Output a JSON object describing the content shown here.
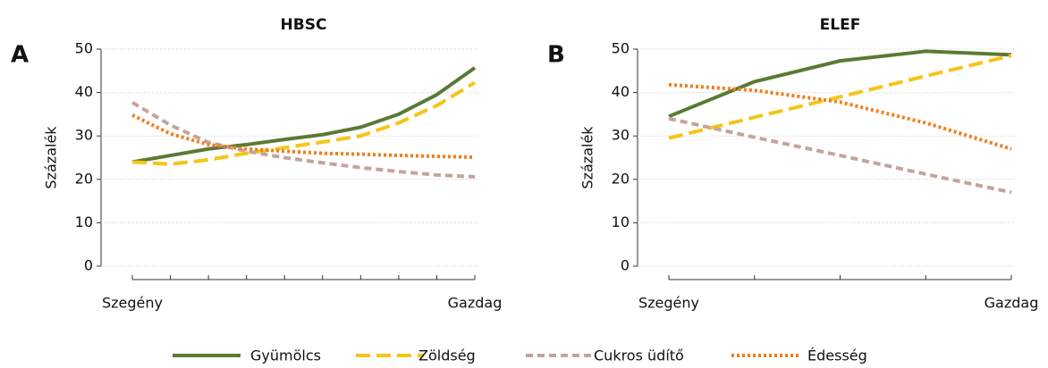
{
  "chart_data": [
    {
      "type": "line",
      "panel_label": "A",
      "title": "HBSC",
      "y_label": "Százalék",
      "categories": [
        "Szegény",
        null,
        null,
        null,
        null,
        null,
        null,
        null,
        null,
        "Gazdag"
      ],
      "ylim": [
        0,
        50
      ],
      "yticks": [
        0,
        10,
        20,
        30,
        40,
        50
      ],
      "grid": true,
      "series": [
        {
          "name": "Gyümölcs",
          "color": "#5a7a35",
          "dash": "solid",
          "values": [
            24,
            25.5,
            27,
            28,
            29.2,
            30.3,
            32,
            35,
            39.5,
            45.7
          ]
        },
        {
          "name": "Zöldség",
          "color": "#f5c518",
          "dash": "long",
          "values": [
            24,
            23.5,
            24.5,
            26,
            27.3,
            28.6,
            30,
            33,
            37,
            42.3
          ]
        },
        {
          "name": "Cukros üdítő",
          "color": "#c4a49a",
          "dash": "short",
          "values": [
            37.7,
            32.5,
            28.5,
            26.5,
            25,
            23.8,
            22.7,
            21.8,
            21,
            20.6
          ]
        },
        {
          "name": "Édesség",
          "color": "#f07f1e",
          "dash": "dotted",
          "values": [
            34.8,
            30.5,
            28,
            27,
            26.5,
            26,
            25.8,
            25.5,
            25.3,
            25.1
          ]
        }
      ]
    },
    {
      "type": "line",
      "panel_label": "B",
      "title": "ELEF",
      "y_label": "Százalék",
      "categories": [
        "Szegény",
        null,
        null,
        null,
        "Gazdag"
      ],
      "ylim": [
        0,
        50
      ],
      "yticks": [
        0,
        10,
        20,
        30,
        40,
        50
      ],
      "grid": true,
      "series": [
        {
          "color": "#5a7a35",
          "dash": "solid",
          "values": [
            34.5,
            42.5,
            47.3,
            49.5,
            48.7
          ]
        },
        {
          "color": "#f5c518",
          "dash": "long",
          "values": [
            29.5,
            34.3,
            39,
            43.8,
            48.5
          ]
        },
        {
          "color": "#c4a49a",
          "dash": "short",
          "values": [
            34,
            29.7,
            25.5,
            21.2,
            17
          ]
        },
        {
          "color": "#f07f1e",
          "dash": "dotted",
          "values": [
            41.8,
            40.5,
            37.8,
            33,
            27
          ]
        }
      ]
    }
  ]
}
